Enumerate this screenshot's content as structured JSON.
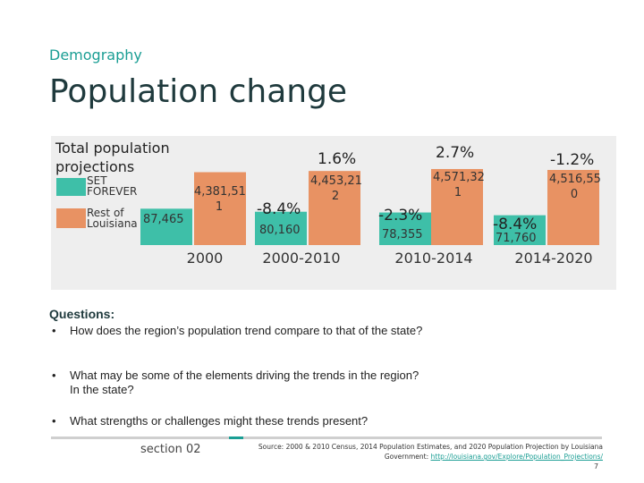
{
  "header": {
    "section": "Demography",
    "title": "Population change"
  },
  "colors": {
    "teal": "#3ebfa8",
    "orange": "#e89263",
    "accent": "#1a9e94",
    "panel": "#eeeeee"
  },
  "chart_data": {
    "type": "bar",
    "title": "Total population projections",
    "legend": [
      {
        "name": "SET FOREVER",
        "lines": [
          "SET",
          "FOREVER"
        ],
        "color": "#3ebfa8"
      },
      {
        "name": "Rest of Louisiana",
        "lines": [
          "Rest of",
          "Louisiana"
        ],
        "color": "#e89263"
      }
    ],
    "categories": [
      "2000",
      "2000-2010",
      "2010-2014",
      "2014-2020"
    ],
    "series": [
      {
        "name": "SET FOREVER",
        "values": [
          87465,
          80160,
          78355,
          71760
        ]
      },
      {
        "name": "Rest of Louisiana",
        "values": [
          4381511,
          4453212,
          4571321,
          4516550
        ]
      }
    ],
    "labels": {
      "set": [
        "87,465",
        "80,160",
        "78,355",
        "71,760"
      ],
      "rest": [
        [
          "4,381,51",
          "1"
        ],
        [
          "4,453,21",
          "2"
        ],
        [
          "4,571,32",
          "1"
        ],
        [
          "4,516,55",
          "0"
        ]
      ],
      "set_change": [
        "",
        "-8.4%",
        "-2.3%",
        "-8.4%"
      ],
      "rest_change": [
        "",
        "1.6%",
        "2.7%",
        "-1.2%"
      ]
    }
  },
  "questions": {
    "heading": "Questions:",
    "bullet": "•",
    "items": [
      "How does the region’s population trend compare to that of the state?",
      "What may be some of the elements driving the trends in the region?  In the state?",
      "What strengths or challenges might these trends present?"
    ]
  },
  "footer": {
    "section": "section 02",
    "source": "Source: 2000 & 2010 Census, 2014 Population Estimates, and 2020 Population Projection by Louisiana Government:",
    "link": "http://louisiana.gov/Explore/Population_Projections/",
    "page": "7"
  }
}
